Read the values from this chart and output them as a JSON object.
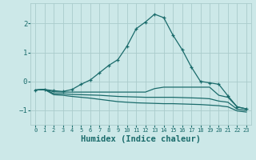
{
  "bg_color": "#cce8e8",
  "grid_color": "#aacccc",
  "line_color": "#1a6b6b",
  "xlabel": "Humidex (Indice chaleur)",
  "xlabel_fontsize": 7.5,
  "ylabel_ticks": [
    -1,
    0,
    1,
    2
  ],
  "xlim": [
    -0.5,
    23.5
  ],
  "ylim": [
    -1.5,
    2.7
  ],
  "x_ticks": [
    0,
    1,
    2,
    3,
    4,
    5,
    6,
    7,
    8,
    9,
    10,
    11,
    12,
    13,
    14,
    15,
    16,
    17,
    18,
    19,
    20,
    21,
    22,
    23
  ],
  "lines": [
    {
      "x": [
        0,
        1,
        2,
        3,
        4,
        5,
        6,
        7,
        8,
        9,
        10,
        11,
        12,
        13,
        14,
        15,
        16,
        17,
        18,
        19,
        20,
        21,
        22,
        23
      ],
      "y": [
        -0.3,
        -0.28,
        -0.32,
        -0.35,
        -0.28,
        -0.1,
        0.05,
        0.3,
        0.55,
        0.75,
        1.22,
        1.82,
        2.05,
        2.32,
        2.2,
        1.6,
        1.1,
        0.5,
        0.0,
        -0.05,
        -0.1,
        -0.5,
        -0.88,
        -0.95
      ],
      "marker": true
    },
    {
      "x": [
        0,
        1,
        2,
        3,
        4,
        5,
        6,
        7,
        8,
        9,
        10,
        11,
        12,
        13,
        14,
        15,
        16,
        17,
        18,
        19,
        20,
        21,
        22,
        23
      ],
      "y": [
        -0.3,
        -0.28,
        -0.36,
        -0.37,
        -0.37,
        -0.37,
        -0.37,
        -0.37,
        -0.37,
        -0.37,
        -0.37,
        -0.37,
        -0.37,
        -0.25,
        -0.2,
        -0.2,
        -0.2,
        -0.2,
        -0.2,
        -0.2,
        -0.48,
        -0.55,
        -0.88,
        -0.95
      ],
      "marker": false
    },
    {
      "x": [
        0,
        1,
        2,
        3,
        4,
        5,
        6,
        7,
        8,
        9,
        10,
        11,
        12,
        13,
        14,
        15,
        16,
        17,
        18,
        19,
        20,
        21,
        22,
        23
      ],
      "y": [
        -0.3,
        -0.28,
        -0.42,
        -0.43,
        -0.45,
        -0.46,
        -0.47,
        -0.48,
        -0.5,
        -0.52,
        -0.53,
        -0.54,
        -0.55,
        -0.55,
        -0.55,
        -0.55,
        -0.56,
        -0.57,
        -0.58,
        -0.6,
        -0.68,
        -0.72,
        -0.96,
        -1.0
      ],
      "marker": false
    },
    {
      "x": [
        0,
        1,
        2,
        3,
        4,
        5,
        6,
        7,
        8,
        9,
        10,
        11,
        12,
        13,
        14,
        15,
        16,
        17,
        18,
        19,
        20,
        21,
        22,
        23
      ],
      "y": [
        -0.3,
        -0.28,
        -0.46,
        -0.48,
        -0.52,
        -0.55,
        -0.58,
        -0.62,
        -0.66,
        -0.7,
        -0.72,
        -0.74,
        -0.75,
        -0.76,
        -0.77,
        -0.77,
        -0.78,
        -0.79,
        -0.8,
        -0.82,
        -0.84,
        -0.88,
        -1.02,
        -1.06
      ],
      "marker": false
    }
  ]
}
